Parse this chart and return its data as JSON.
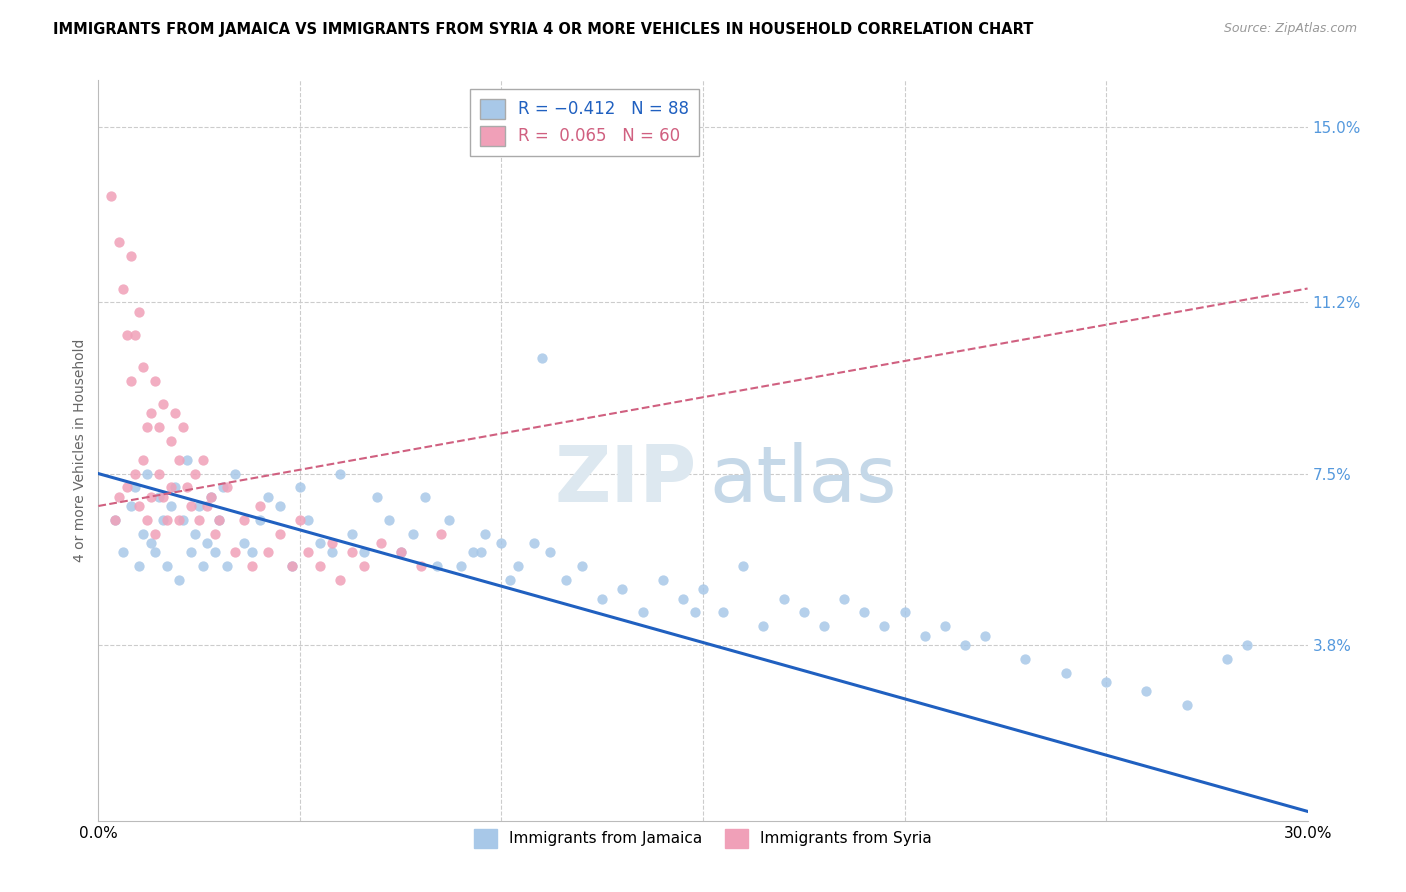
{
  "title": "IMMIGRANTS FROM JAMAICA VS IMMIGRANTS FROM SYRIA 4 OR MORE VEHICLES IN HOUSEHOLD CORRELATION CHART",
  "source": "Source: ZipAtlas.com",
  "ylabel_label": "4 or more Vehicles in Household",
  "right_yticks": [
    15.0,
    11.2,
    7.5,
    3.8
  ],
  "right_ytick_labels": [
    "15.0%",
    "11.2%",
    "7.5%",
    "3.8%"
  ],
  "xlim": [
    0.0,
    30.0
  ],
  "ylim": [
    0.0,
    16.0
  ],
  "jamaica_color": "#a8c8e8",
  "syria_color": "#f0a0b8",
  "jamaica_line_color": "#2060c0",
  "syria_line_color": "#d06080",
  "jamaica_R": -0.412,
  "jamaica_N": 88,
  "syria_R": 0.065,
  "syria_N": 60,
  "watermark_zip": "ZIP",
  "watermark_atlas": "atlas",
  "jamaica_scatter_x": [
    0.4,
    0.6,
    0.8,
    0.9,
    1.0,
    1.1,
    1.2,
    1.3,
    1.4,
    1.5,
    1.6,
    1.7,
    1.8,
    1.9,
    2.0,
    2.1,
    2.2,
    2.3,
    2.4,
    2.5,
    2.6,
    2.7,
    2.8,
    2.9,
    3.0,
    3.1,
    3.2,
    3.4,
    3.6,
    3.8,
    4.0,
    4.2,
    4.5,
    4.8,
    5.0,
    5.2,
    5.5,
    5.8,
    6.0,
    6.3,
    6.6,
    6.9,
    7.2,
    7.5,
    7.8,
    8.1,
    8.4,
    8.7,
    9.0,
    9.3,
    9.6,
    10.0,
    10.4,
    10.8,
    11.2,
    11.6,
    12.0,
    12.5,
    13.0,
    13.5,
    14.0,
    14.5,
    15.0,
    15.5,
    16.0,
    16.5,
    17.0,
    17.5,
    18.0,
    18.5,
    19.0,
    19.5,
    20.0,
    20.5,
    21.0,
    21.5,
    22.0,
    23.0,
    24.0,
    25.0,
    26.0,
    27.0,
    28.0,
    28.5,
    9.5,
    10.2,
    11.0,
    14.8
  ],
  "jamaica_scatter_y": [
    6.5,
    5.8,
    6.8,
    7.2,
    5.5,
    6.2,
    7.5,
    6.0,
    5.8,
    7.0,
    6.5,
    5.5,
    6.8,
    7.2,
    5.2,
    6.5,
    7.8,
    5.8,
    6.2,
    6.8,
    5.5,
    6.0,
    7.0,
    5.8,
    6.5,
    7.2,
    5.5,
    7.5,
    6.0,
    5.8,
    6.5,
    7.0,
    6.8,
    5.5,
    7.2,
    6.5,
    6.0,
    5.8,
    7.5,
    6.2,
    5.8,
    7.0,
    6.5,
    5.8,
    6.2,
    7.0,
    5.5,
    6.5,
    5.5,
    5.8,
    6.2,
    6.0,
    5.5,
    6.0,
    5.8,
    5.2,
    5.5,
    4.8,
    5.0,
    4.5,
    5.2,
    4.8,
    5.0,
    4.5,
    5.5,
    4.2,
    4.8,
    4.5,
    4.2,
    4.8,
    4.5,
    4.2,
    4.5,
    4.0,
    4.2,
    3.8,
    4.0,
    3.5,
    3.2,
    3.0,
    2.8,
    2.5,
    3.5,
    3.8,
    5.8,
    5.2,
    10.0,
    4.5
  ],
  "syria_scatter_x": [
    0.3,
    0.4,
    0.5,
    0.5,
    0.6,
    0.7,
    0.7,
    0.8,
    0.8,
    0.9,
    0.9,
    1.0,
    1.0,
    1.1,
    1.1,
    1.2,
    1.2,
    1.3,
    1.3,
    1.4,
    1.4,
    1.5,
    1.5,
    1.6,
    1.6,
    1.7,
    1.8,
    1.8,
    1.9,
    2.0,
    2.0,
    2.1,
    2.2,
    2.3,
    2.4,
    2.5,
    2.6,
    2.7,
    2.8,
    2.9,
    3.0,
    3.2,
    3.4,
    3.6,
    3.8,
    4.0,
    4.2,
    4.5,
    4.8,
    5.0,
    5.2,
    5.5,
    5.8,
    6.0,
    6.3,
    6.6,
    7.0,
    7.5,
    8.0,
    8.5
  ],
  "syria_scatter_y": [
    13.5,
    6.5,
    12.5,
    7.0,
    11.5,
    10.5,
    7.2,
    9.5,
    12.2,
    10.5,
    7.5,
    6.8,
    11.0,
    9.8,
    7.8,
    8.5,
    6.5,
    8.8,
    7.0,
    9.5,
    6.2,
    7.5,
    8.5,
    7.0,
    9.0,
    6.5,
    8.2,
    7.2,
    8.8,
    6.5,
    7.8,
    8.5,
    7.2,
    6.8,
    7.5,
    6.5,
    7.8,
    6.8,
    7.0,
    6.2,
    6.5,
    7.2,
    5.8,
    6.5,
    5.5,
    6.8,
    5.8,
    6.2,
    5.5,
    6.5,
    5.8,
    5.5,
    6.0,
    5.2,
    5.8,
    5.5,
    6.0,
    5.8,
    5.5,
    6.2
  ],
  "jamaica_line_x0": 0.0,
  "jamaica_line_y0": 7.5,
  "jamaica_line_x1": 30.0,
  "jamaica_line_y1": 0.2,
  "syria_line_x0": 0.0,
  "syria_line_y0": 6.8,
  "syria_line_x1": 30.0,
  "syria_line_y1": 11.5
}
